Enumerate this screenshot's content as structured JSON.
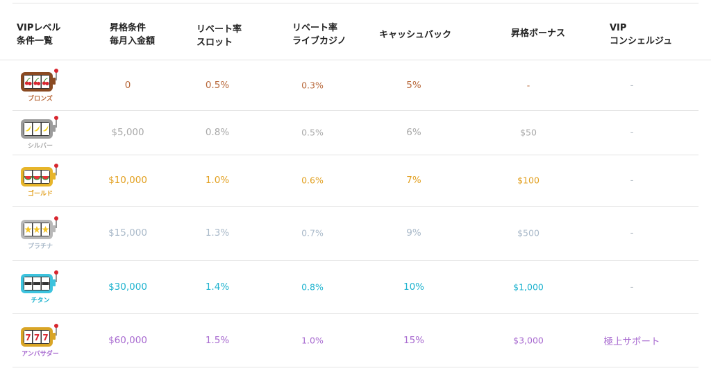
{
  "columns": [
    {
      "id": "level",
      "label": "VIPレベル\n条件一覧"
    },
    {
      "id": "deposit",
      "label": "昇格条件\n毎月入金額"
    },
    {
      "id": "slot",
      "label": "リベート率\nスロット"
    },
    {
      "id": "live",
      "label": "リベート率\nライブカジノ"
    },
    {
      "id": "cashback",
      "label": "キャッシュバック"
    },
    {
      "id": "bonus",
      "label": "昇格ボーナス"
    },
    {
      "id": "concierge",
      "label": "VIP\nコンシェルジュ"
    }
  ],
  "rows": [
    {
      "level": "ブロンズ",
      "icon": "cherry-slot-icon",
      "color": "#b8683a",
      "body": "#8a4a22",
      "deposit": "0",
      "slot": "0.5%",
      "live": "0.3%",
      "cashback": "5%",
      "bonus": "-",
      "concierge": "-"
    },
    {
      "level": "シルバー",
      "icon": "banana-slot-icon",
      "color": "#a8a8a8",
      "body": "#9c9c9c",
      "deposit": "$5,000",
      "slot": "0.8%",
      "live": "0.5%",
      "cashback": "6%",
      "bonus": "$50",
      "concierge": "-"
    },
    {
      "level": "ゴールド",
      "icon": "watermelon-slot-icon",
      "color": "#e2a020",
      "body": "#e7b52a",
      "deposit": "$10,000",
      "slot": "1.0%",
      "live": "0.6%",
      "cashback": "7%",
      "bonus": "$100",
      "concierge": "-"
    },
    {
      "level": "プラチナ",
      "icon": "star-slot-icon",
      "color": "#a9b9c9",
      "body": "#b8b8b8",
      "deposit": "$15,000",
      "slot": "1.3%",
      "live": "0.7%",
      "cashback": "9%",
      "bonus": "$500",
      "concierge": "-"
    },
    {
      "level": "チタン",
      "icon": "bar-slot-icon",
      "color": "#1fb3cf",
      "body": "#3cc3de",
      "deposit": "$30,000",
      "slot": "1.4%",
      "live": "0.8%",
      "cashback": "10%",
      "bonus": "$1,000",
      "concierge": "-"
    },
    {
      "level": "アンバサダー",
      "icon": "seven-slot-icon",
      "color": "#a86ad0",
      "body": "#d9a526",
      "deposit": "$60,000",
      "slot": "1.5%",
      "live": "1.0%",
      "cashback": "15%",
      "bonus": "$3,000",
      "concierge": "極上サポート"
    }
  ],
  "theme": {
    "dash_color": "#b0b8c0",
    "concierge_dash": "#b8c0c8",
    "header_color": "#222222",
    "divider": "#e3e3e3"
  }
}
